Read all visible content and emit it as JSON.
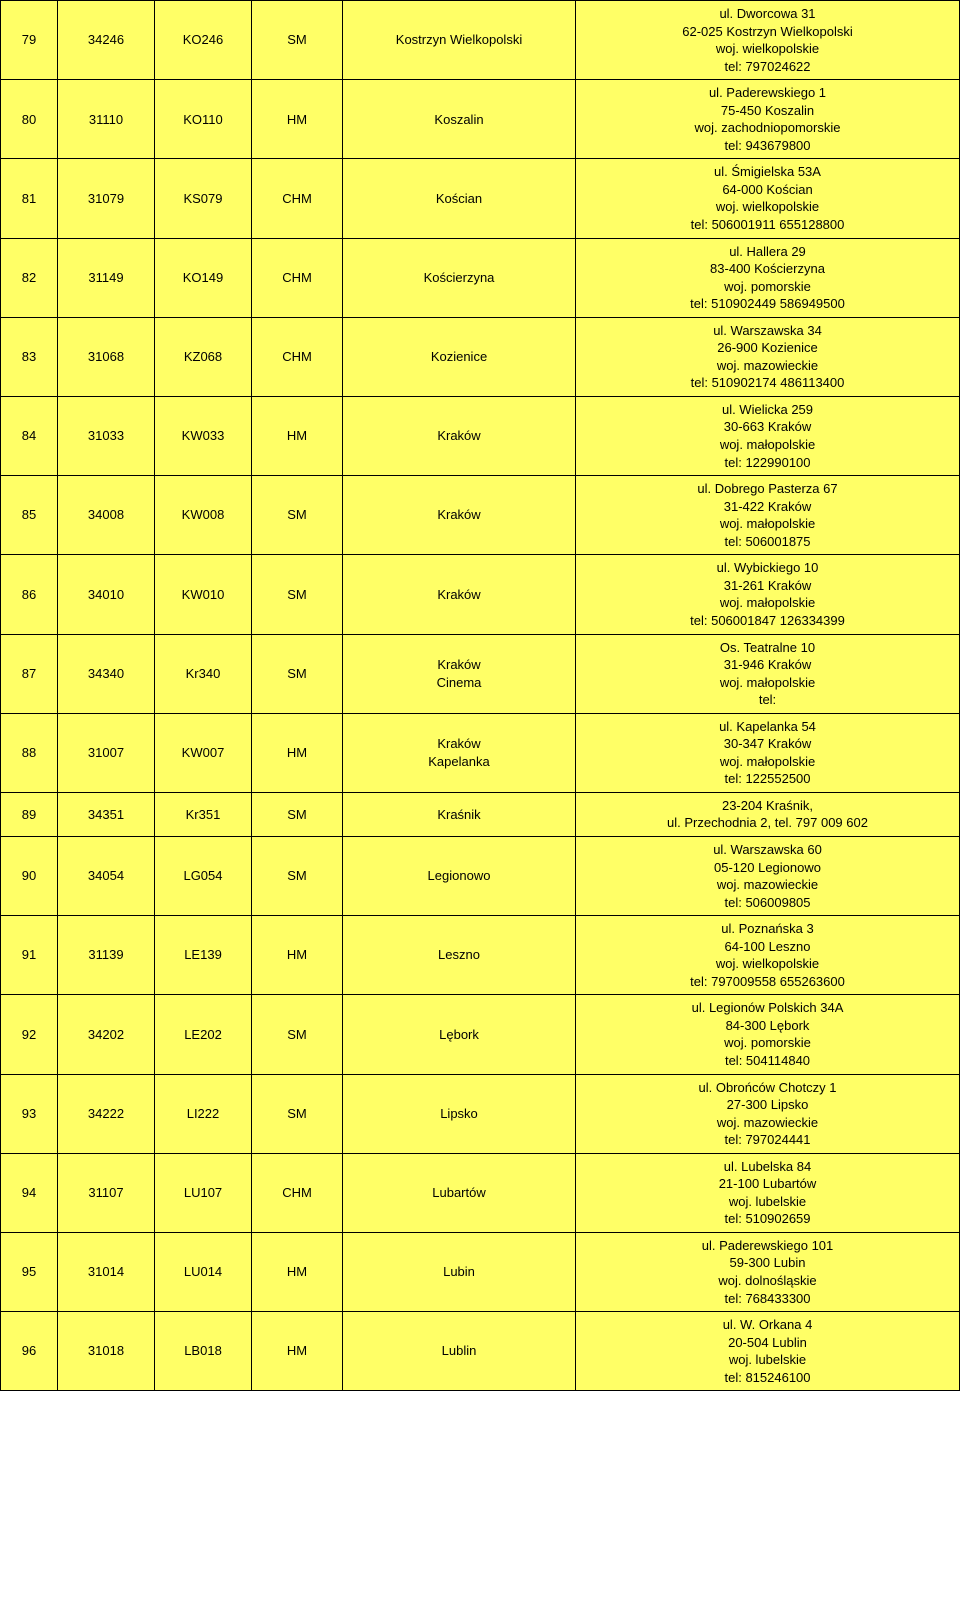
{
  "table": {
    "row_background": "#ffff66",
    "border_color": "#000000",
    "font_size": 13,
    "rows": [
      {
        "num": "79",
        "id": "34246",
        "code": "KO246",
        "type": "SM",
        "city": "Kostrzyn Wielkopolski",
        "addr": "ul. Dworcowa 31\n62-025 Kostrzyn Wielkopolski\nwoj. wielkopolskie\ntel: 797024622"
      },
      {
        "num": "80",
        "id": "31110",
        "code": "KO110",
        "type": "HM",
        "city": "Koszalin",
        "addr": "ul. Paderewskiego 1\n75-450 Koszalin\nwoj. zachodniopomorskie\ntel:  943679800"
      },
      {
        "num": "81",
        "id": "31079",
        "code": "KS079",
        "type": "CHM",
        "city": "Kościan",
        "addr": "ul. Śmigielska 53A\n64-000 Kościan\nwoj. wielkopolskie\ntel: 506001911 655128800"
      },
      {
        "num": "82",
        "id": "31149",
        "code": "KO149",
        "type": "CHM",
        "city": "Kościerzyna",
        "addr": "ul. Hallera   29\n83-400 Kościerzyna\nwoj. pomorskie\ntel: 510902449 586949500"
      },
      {
        "num": "83",
        "id": "31068",
        "code": "KZ068",
        "type": "CHM",
        "city": "Kozienice",
        "addr": "ul. Warszawska 34\n26-900 Kozienice\nwoj. mazowieckie\ntel: 510902174 486113400"
      },
      {
        "num": "84",
        "id": "31033",
        "code": "KW033",
        "type": "HM",
        "city": "Kraków",
        "addr": "ul. Wielicka 259\n30-663 Kraków\nwoj. małopolskie\ntel:  122990100"
      },
      {
        "num": "85",
        "id": "34008",
        "code": "KW008",
        "type": "SM",
        "city": "Kraków",
        "addr": "ul. Dobrego Pasterza 67\n31-422 Kraków\nwoj. małopolskie\ntel: 506001875"
      },
      {
        "num": "86",
        "id": "34010",
        "code": "KW010",
        "type": "SM",
        "city": "Kraków",
        "addr": "ul. Wybickiego 10\n31-261 Kraków\nwoj. małopolskie\ntel: 506001847 126334399"
      },
      {
        "num": "87",
        "id": "34340",
        "code": "Kr340",
        "type": "SM",
        "city": "Kraków\nCinema",
        "addr": "Os. Teatralne 10\n31-946 Kraków\nwoj. małopolskie\ntel:"
      },
      {
        "num": "88",
        "id": "31007",
        "code": "KW007",
        "type": "HM",
        "city": "Kraków\nKapelanka",
        "addr": "ul. Kapelanka 54\n30-347 Kraków\nwoj. małopolskie\ntel:  122552500"
      },
      {
        "num": "89",
        "id": "34351",
        "code": "Kr351",
        "type": "SM",
        "city": "Kraśnik",
        "addr": "23-204 Kraśnik,\nul. Przechodnia 2, tel. 797 009 602"
      },
      {
        "num": "90",
        "id": "34054",
        "code": "LG054",
        "type": "SM",
        "city": "Legionowo",
        "addr": "ul. Warszawska 60\n05-120 Legionowo\nwoj. mazowieckie\ntel: 506009805"
      },
      {
        "num": "91",
        "id": "31139",
        "code": "LE139",
        "type": "HM",
        "city": "Leszno",
        "addr": "ul. Poznańska 3\n64-100 Leszno\nwoj. wielkopolskie\ntel: 797009558 655263600"
      },
      {
        "num": "92",
        "id": "34202",
        "code": "LE202",
        "type": "SM",
        "city": "Lębork",
        "addr": "ul. Legionów Polskich 34A\n84-300 Lębork\nwoj. pomorskie\ntel: 504114840"
      },
      {
        "num": "93",
        "id": "34222",
        "code": "LI222",
        "type": "SM",
        "city": "Lipsko",
        "addr": "ul. Obrońców Chotczy 1\n27-300 Lipsko\nwoj. mazowieckie\ntel: 797024441"
      },
      {
        "num": "94",
        "id": "31107",
        "code": "LU107",
        "type": "CHM",
        "city": "Lubartów",
        "addr": "ul. Lubelska 84\n21-100 Lubartów\nwoj. lubelskie\ntel: 510902659"
      },
      {
        "num": "95",
        "id": "31014",
        "code": "LU014",
        "type": "HM",
        "city": "Lubin",
        "addr": "ul. Paderewskiego 101\n59-300 Lubin\nwoj. dolnośląskie\ntel:  768433300"
      },
      {
        "num": "96",
        "id": "31018",
        "code": "LB018",
        "type": "HM",
        "city": "Lublin",
        "addr": "ul. W. Orkana 4\n20-504 Lublin\nwoj. lubelskie\ntel:  815246100"
      }
    ]
  }
}
